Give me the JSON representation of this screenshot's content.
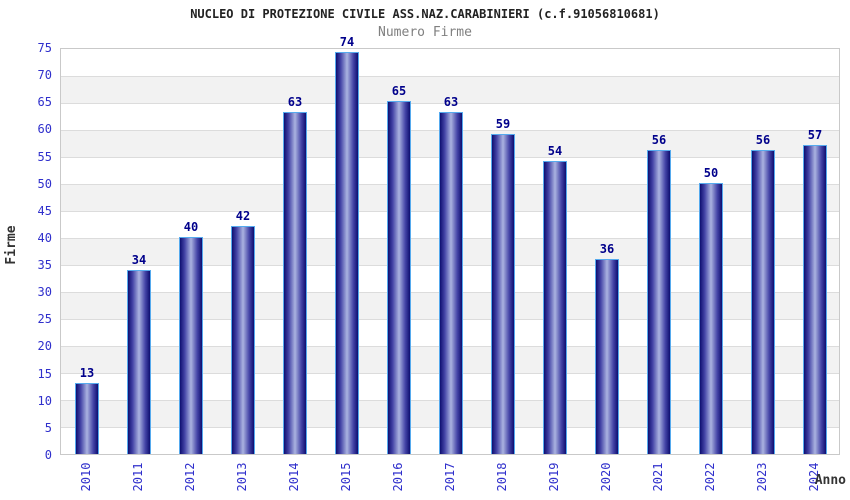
{
  "chart_data": {
    "type": "bar",
    "title": "NUCLEO DI PROTEZIONE CIVILE ASS.NAZ.CARABINIERI (c.f.91056810681)",
    "subtitle": "Numero Firme",
    "xlabel": "Anno",
    "ylabel": "Firme",
    "categories": [
      "2010",
      "2011",
      "2012",
      "2013",
      "2014",
      "2015",
      "2016",
      "2017",
      "2018",
      "2019",
      "2020",
      "2021",
      "2022",
      "2023",
      "2024"
    ],
    "values": [
      13,
      34,
      40,
      42,
      63,
      74,
      65,
      63,
      59,
      54,
      36,
      56,
      50,
      56,
      57
    ],
    "ylim": [
      0,
      75
    ],
    "ytick_step": 5,
    "grid": true,
    "legend": "none",
    "colors": {
      "background": "#ffffff",
      "band_alt": "#f2f2f2",
      "gridline": "#dcdcdc",
      "plot_border": "#c9c9c9",
      "bar_edge_dark": "#0e0e70",
      "bar_mid": "#4646a8",
      "bar_highlight": "#aab3e0",
      "bar_border": "#55aaee",
      "value_label": "#00008b",
      "tick_label": "#3030cc",
      "title": "#222222",
      "subtitle": "#808080",
      "axis_title": "#333333"
    }
  }
}
